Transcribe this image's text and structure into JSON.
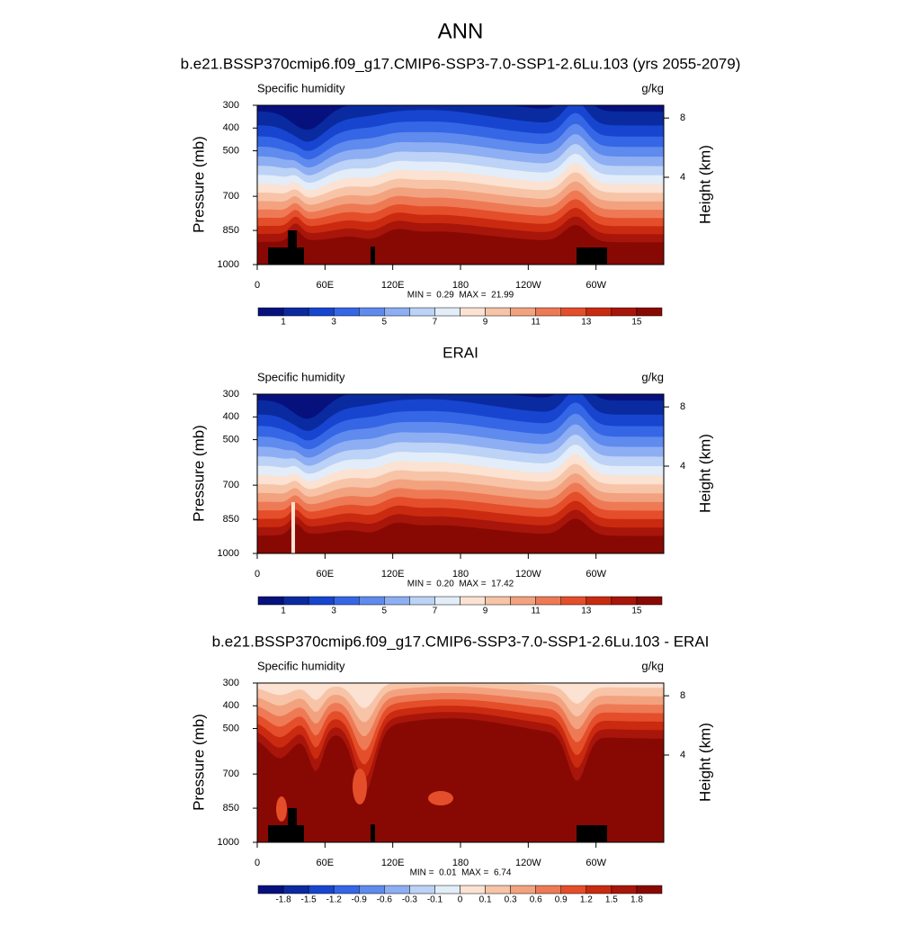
{
  "title": "ANN",
  "panels": [
    {
      "title": "b.e21.BSSP370cmip6.f09_g17.CMIP6-SSP3-7.0-SSP1-2.6Lu.103 (yrs 2055-2079)",
      "left_label": "Specific humidity",
      "right_label": "g/kg",
      "ylabel": "Pressure (mb)",
      "y2label": "Height (km)",
      "ylim": [
        300,
        1000
      ],
      "yticks": [
        300,
        400,
        500,
        700,
        850,
        1000
      ],
      "y2ticks": [
        8,
        4
      ],
      "xlim": [
        0,
        360
      ],
      "xticks": [
        0,
        {
          "value": 60,
          "label": "60E"
        },
        {
          "value": 120,
          "label": "120E"
        },
        180,
        {
          "value": 240,
          "label": "120W"
        },
        {
          "value": 300,
          "label": "60W"
        }
      ],
      "stats": "MIN =  0.29  MAX =  21.99",
      "colorbar": {
        "colors": [
          "#06117e",
          "#0a2aa0",
          "#1745cf",
          "#3566e6",
          "#5f8aee",
          "#8eaef3",
          "#bcd2f6",
          "#e2edf9",
          "#fbe2d2",
          "#f7c4a8",
          "#f3a27f",
          "#ee7a55",
          "#e44e2a",
          "#ca2a0f",
          "#a8150a",
          "#880903"
        ],
        "labels": [
          1,
          null,
          3,
          null,
          5,
          null,
          7,
          null,
          9,
          null,
          11,
          null,
          13,
          null,
          15
        ]
      }
    },
    {
      "title": "ERAI",
      "left_label": "Specific humidity",
      "right_label": "g/kg",
      "ylabel": "Pressure (mb)",
      "y2label": "Height (km)",
      "ylim": [
        300,
        1000
      ],
      "yticks": [
        300,
        400,
        500,
        700,
        850,
        1000
      ],
      "y2ticks": [
        8,
        4
      ],
      "xlim": [
        0,
        360
      ],
      "xticks": [
        0,
        {
          "value": 60,
          "label": "60E"
        },
        {
          "value": 120,
          "label": "120E"
        },
        180,
        {
          "value": 240,
          "label": "120W"
        },
        {
          "value": 300,
          "label": "60W"
        }
      ],
      "stats": "MIN =  0.20  MAX =  17.42",
      "colorbar": {
        "colors": [
          "#06117e",
          "#0a2aa0",
          "#1745cf",
          "#3566e6",
          "#5f8aee",
          "#8eaef3",
          "#bcd2f6",
          "#e2edf9",
          "#fbe2d2",
          "#f7c4a8",
          "#f3a27f",
          "#ee7a55",
          "#e44e2a",
          "#ca2a0f",
          "#a8150a",
          "#880903"
        ],
        "labels": [
          1,
          null,
          3,
          null,
          5,
          null,
          7,
          null,
          9,
          null,
          11,
          null,
          13,
          null,
          15
        ]
      }
    },
    {
      "title": "b.e21.BSSP370cmip6.f09_g17.CMIP6-SSP3-7.0-SSP1-2.6Lu.103 - ERAI",
      "left_label": "Specific humidity",
      "right_label": "g/kg",
      "ylabel": "Pressure (mb)",
      "y2label": "Height (km)",
      "ylim": [
        300,
        1000
      ],
      "yticks": [
        300,
        400,
        500,
        700,
        850,
        1000
      ],
      "y2ticks": [
        8,
        4
      ],
      "xlim": [
        0,
        360
      ],
      "xticks": [
        0,
        {
          "value": 60,
          "label": "60E"
        },
        {
          "value": 120,
          "label": "120E"
        },
        180,
        {
          "value": 240,
          "label": "120W"
        },
        {
          "value": 300,
          "label": "60W"
        }
      ],
      "stats": "MIN =  0.01  MAX =  6.74",
      "colorbar": {
        "colors": [
          "#06117e",
          "#0a2aa0",
          "#1745cf",
          "#3566e6",
          "#5f8aee",
          "#8eaef3",
          "#bcd2f6",
          "#e2edf9",
          "#fbe2d2",
          "#f7c4a8",
          "#f3a27f",
          "#ee7a55",
          "#e44e2a",
          "#ca2a0f",
          "#a8150a",
          "#880903"
        ],
        "labels": [
          -1.8,
          -1.5,
          -1.2,
          -0.9,
          -0.6,
          -0.3,
          -0.1,
          0,
          0.1,
          0.3,
          0.6,
          0.9,
          1.2,
          1.5,
          1.8
        ]
      }
    }
  ]
}
